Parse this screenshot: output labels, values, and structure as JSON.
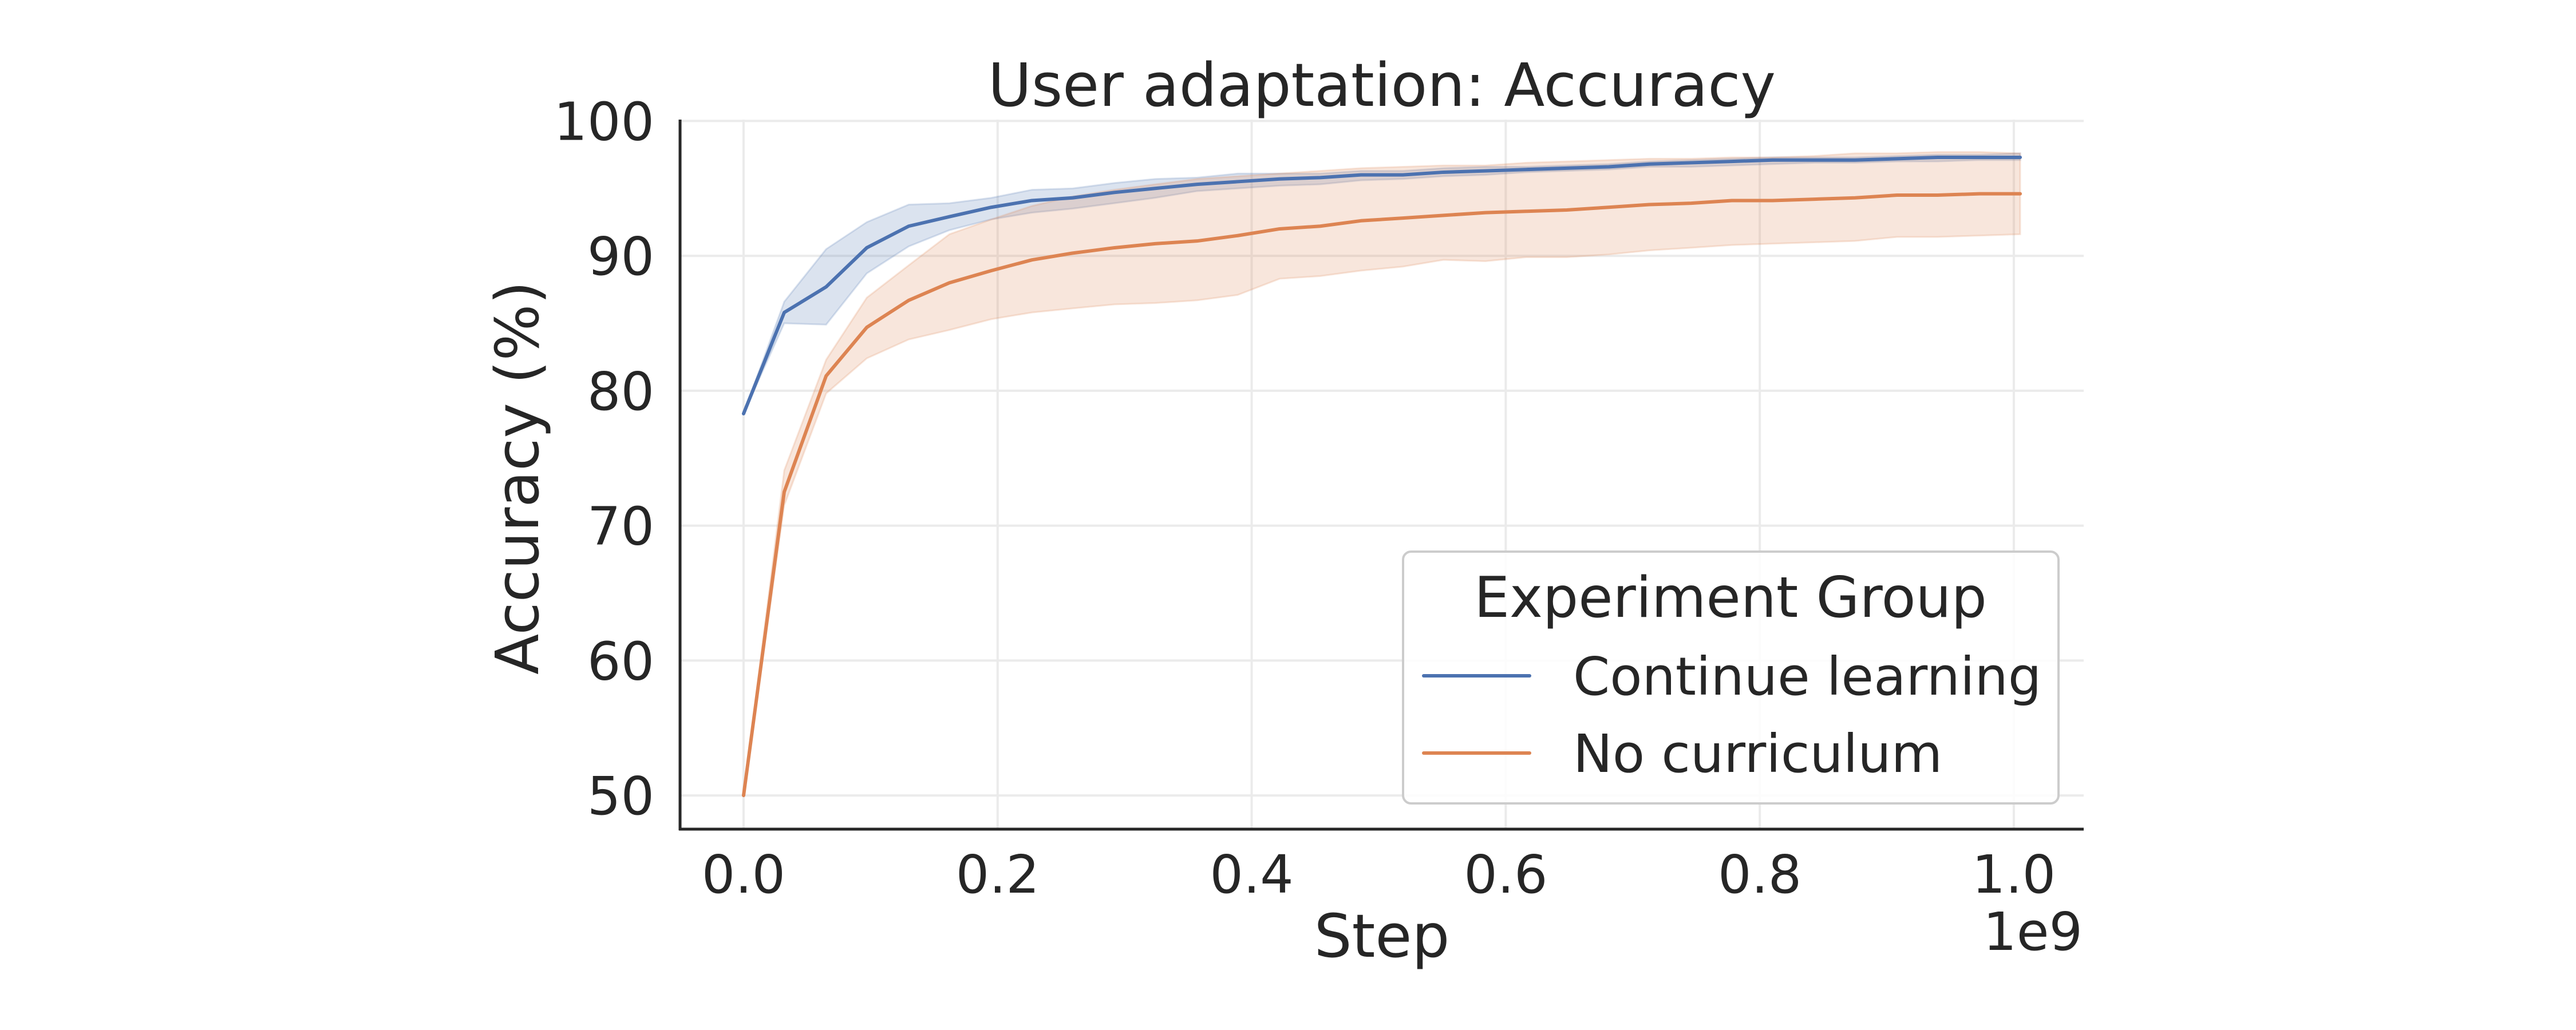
{
  "chart_data": {
    "type": "line",
    "title": "User adaptation: Accuracy",
    "xlabel": "Step",
    "ylabel": "Accuracy (%)",
    "x_offset_label": "1e9",
    "xlim": [
      -0.05,
      1.055
    ],
    "ylim": [
      47.5,
      100.1
    ],
    "x_ticks": [
      0.0,
      0.2,
      0.4,
      0.6,
      0.8,
      1.0
    ],
    "x_tick_labels": [
      "0.0",
      "0.2",
      "0.4",
      "0.6",
      "0.8",
      "1.0"
    ],
    "y_ticks": [
      50,
      60,
      70,
      80,
      90,
      100
    ],
    "y_tick_labels": [
      "50",
      "60",
      "70",
      "80",
      "90",
      "100"
    ],
    "grid": true,
    "legend": {
      "title": "Experiment Group",
      "placement": "lower-right"
    },
    "x": [
      0,
      0.032,
      0.065,
      0.097,
      0.13,
      0.162,
      0.195,
      0.227,
      0.259,
      0.292,
      0.324,
      0.357,
      0.389,
      0.422,
      0.454,
      0.486,
      0.519,
      0.551,
      0.584,
      0.616,
      0.648,
      0.681,
      0.713,
      0.746,
      0.778,
      0.81,
      0.843,
      0.875,
      0.908,
      0.94,
      0.973,
      1.005
    ],
    "series": [
      {
        "name": "Continue learning",
        "color": "#4c72b0",
        "values": [
          78.3,
          85.8,
          87.7,
          90.6,
          92.2,
          92.9,
          93.6,
          94.1,
          94.3,
          94.7,
          95.0,
          95.3,
          95.5,
          95.7,
          95.8,
          96.0,
          96.0,
          96.2,
          96.3,
          96.4,
          96.5,
          96.6,
          96.8,
          96.9,
          97.0,
          97.1,
          97.1,
          97.1,
          97.2,
          97.3,
          97.3,
          97.3
        ],
        "upper": [
          78.3,
          86.6,
          90.5,
          92.5,
          93.8,
          93.9,
          94.3,
          94.9,
          95.0,
          95.4,
          95.7,
          95.8,
          96.1,
          96.1,
          96.1,
          96.3,
          96.3,
          96.5,
          96.6,
          96.6,
          96.7,
          96.8,
          97.0,
          97.1,
          97.2,
          97.3,
          97.3,
          97.3,
          97.4,
          97.5,
          97.5,
          97.6
        ],
        "lower": [
          78.3,
          85.0,
          84.9,
          88.7,
          90.7,
          91.9,
          92.7,
          93.2,
          93.5,
          93.9,
          94.3,
          94.8,
          95.0,
          95.2,
          95.3,
          95.6,
          95.7,
          95.9,
          96.0,
          96.2,
          96.3,
          96.4,
          96.6,
          96.6,
          96.7,
          96.8,
          96.9,
          96.9,
          97.0,
          97.0,
          97.1,
          97.1
        ]
      },
      {
        "name": "No curriculum",
        "color": "#dd8452",
        "values": [
          50.0,
          72.5,
          81.1,
          84.7,
          86.7,
          88.0,
          88.9,
          89.7,
          90.2,
          90.6,
          90.9,
          91.1,
          91.5,
          92.0,
          92.2,
          92.6,
          92.8,
          93.0,
          93.2,
          93.3,
          93.4,
          93.6,
          93.8,
          93.9,
          94.1,
          94.1,
          94.2,
          94.3,
          94.5,
          94.5,
          94.6,
          94.6
        ],
        "upper": [
          50.0,
          74.1,
          82.3,
          86.9,
          89.3,
          91.6,
          92.7,
          93.7,
          94.4,
          94.9,
          95.3,
          95.7,
          95.9,
          96.1,
          96.3,
          96.5,
          96.6,
          96.7,
          96.7,
          96.9,
          97.0,
          97.1,
          97.2,
          97.2,
          97.3,
          97.3,
          97.4,
          97.6,
          97.6,
          97.7,
          97.7,
          97.6
        ],
        "lower": [
          50.0,
          71.5,
          79.8,
          82.4,
          83.8,
          84.5,
          85.3,
          85.8,
          86.1,
          86.4,
          86.5,
          86.7,
          87.1,
          88.3,
          88.5,
          88.9,
          89.2,
          89.7,
          89.6,
          89.9,
          89.9,
          90.1,
          90.4,
          90.6,
          90.8,
          90.9,
          91.0,
          91.1,
          91.4,
          91.4,
          91.5,
          91.6
        ]
      }
    ]
  }
}
